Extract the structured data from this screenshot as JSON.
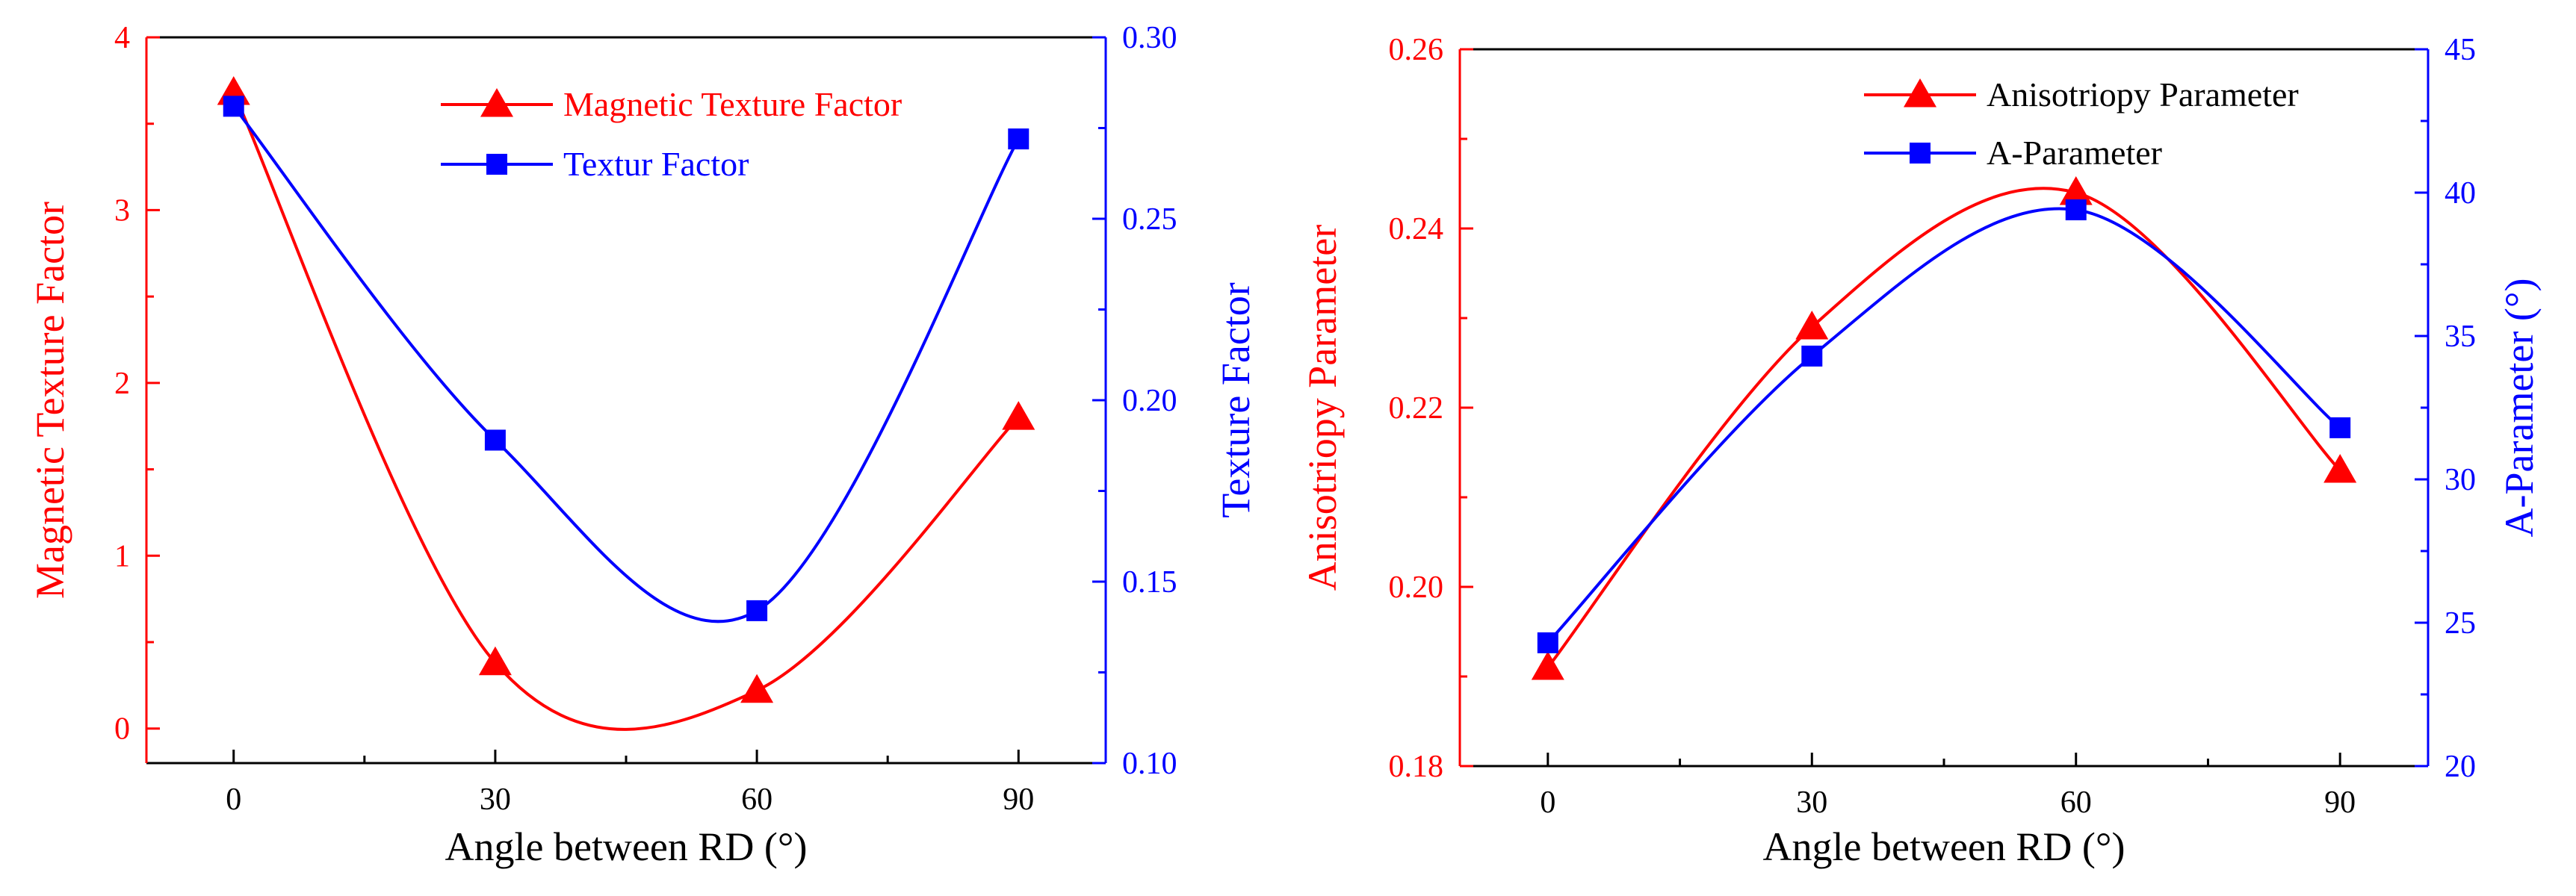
{
  "figure_title": "",
  "colors": {
    "left_series": "#ff0000",
    "right_series": "#0000ff",
    "axis": "#000000",
    "left_axis": "#ff0000",
    "right_axis": "#0000ff"
  },
  "chart_data": [
    {
      "type": "line",
      "title": "",
      "xlabel": "Angle between RD (°)",
      "ylabel": "Magnetic Texture Factor",
      "y2label": "Texture Factor",
      "x": [
        0,
        30,
        60,
        90
      ],
      "x_ticks": [
        0,
        30,
        60,
        90
      ],
      "x_tick_labels": [
        "0",
        "30",
        "60",
        "90"
      ],
      "xlim": [
        -10,
        100
      ],
      "ylim": [
        -0.2,
        4
      ],
      "y_ticks": [
        0,
        1,
        2,
        3,
        4
      ],
      "y_tick_labels": [
        "0",
        "1",
        "2",
        "3",
        "4"
      ],
      "y2lim": [
        0.1,
        0.3
      ],
      "y2_ticks": [
        0.1,
        0.15,
        0.2,
        0.25,
        0.3
      ],
      "y2_tick_labels": [
        "0.10",
        "0.15",
        "0.20",
        "0.25",
        "0.30"
      ],
      "grid": false,
      "legend_position": "top-right",
      "series": [
        {
          "name": "Magnetic Texture Factor",
          "axis": "left",
          "marker": "triangle",
          "color": "#ff0000",
          "values": [
            3.68,
            0.38,
            0.22,
            1.8
          ]
        },
        {
          "name": "Textur Factor",
          "axis": "right",
          "marker": "square",
          "color": "#0000ff",
          "values": [
            0.281,
            0.189,
            0.142,
            0.272
          ]
        }
      ]
    },
    {
      "type": "line",
      "title": "",
      "xlabel": "Angle between RD (°)",
      "ylabel": "Anisotriopy Parameter",
      "y2label": "A-Parameter (°)",
      "x": [
        0,
        30,
        60,
        90
      ],
      "x_ticks": [
        0,
        30,
        60,
        90
      ],
      "x_tick_labels": [
        "0",
        "30",
        "60",
        "90"
      ],
      "xlim": [
        -10,
        100
      ],
      "ylim": [
        0.18,
        0.26
      ],
      "y_ticks": [
        0.18,
        0.2,
        0.22,
        0.24,
        0.26
      ],
      "y_tick_labels": [
        "0.18",
        "0.20",
        "0.22",
        "0.24",
        "0.26"
      ],
      "y2lim": [
        20,
        45
      ],
      "y2_ticks": [
        20,
        25,
        30,
        35,
        40,
        45
      ],
      "y2_tick_labels": [
        "20",
        "25",
        "30",
        "35",
        "40",
        "45"
      ],
      "grid": false,
      "legend_position": "top-right",
      "series": [
        {
          "name": "Anisotriopy Parameter",
          "axis": "left",
          "marker": "triangle",
          "color": "#ff0000",
          "values": [
            0.191,
            0.229,
            0.244,
            0.213
          ]
        },
        {
          "name": "A-Parameter",
          "axis": "right",
          "marker": "square",
          "color": "#0000ff",
          "values": [
            24.3,
            34.3,
            39.4,
            31.8
          ]
        }
      ]
    }
  ]
}
